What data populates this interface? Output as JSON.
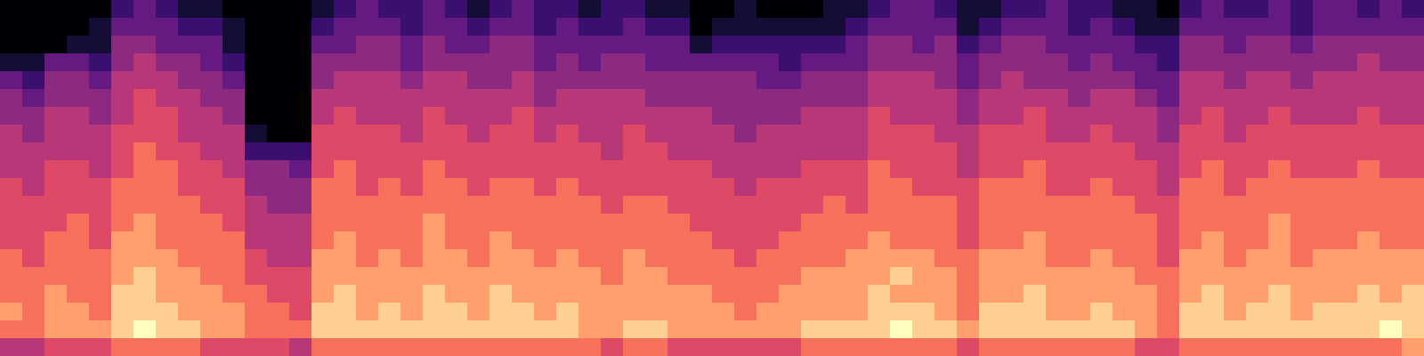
{
  "chart_data": {
    "type": "heatmap",
    "tick_labels": false,
    "color": "magma",
    "cells": [
      [
        0,
        0,
        0,
        0,
        0,
        2,
        3,
        2,
        1,
        1,
        0,
        0,
        0,
        0,
        1,
        2,
        3,
        2,
        2,
        3,
        2,
        1,
        2,
        3,
        2,
        2,
        1,
        2,
        2,
        1,
        1,
        0,
        0,
        1,
        0,
        0,
        0,
        1,
        1,
        2,
        3,
        3,
        2,
        1,
        1,
        2,
        2,
        3,
        2,
        2,
        1,
        1,
        0,
        2,
        3,
        2,
        2,
        3,
        2,
        3,
        3,
        2,
        3,
        2
      ],
      [
        0,
        0,
        0,
        0,
        1,
        3,
        3,
        3,
        2,
        2,
        1,
        0,
        0,
        0,
        2,
        3,
        3,
        3,
        2,
        3,
        3,
        2,
        3,
        3,
        2,
        3,
        2,
        2,
        3,
        2,
        2,
        0,
        1,
        1,
        1,
        1,
        1,
        1,
        2,
        3,
        3,
        3,
        3,
        1,
        2,
        3,
        3,
        3,
        2,
        3,
        2,
        1,
        1,
        3,
        3,
        3,
        3,
        3,
        2,
        3,
        3,
        3,
        3,
        3
      ],
      [
        0,
        0,
        0,
        1,
        1,
        4,
        4,
        3,
        3,
        3,
        1,
        0,
        0,
        0,
        3,
        3,
        4,
        4,
        3,
        4,
        3,
        3,
        4,
        4,
        3,
        3,
        3,
        3,
        3,
        3,
        3,
        1,
        2,
        2,
        2,
        2,
        2,
        2,
        3,
        4,
        4,
        3,
        4,
        2,
        3,
        4,
        4,
        3,
        3,
        3,
        3,
        2,
        2,
        4,
        4,
        3,
        4,
        4,
        3,
        4,
        4,
        4,
        4,
        4
      ],
      [
        1,
        1,
        3,
        3,
        2,
        4,
        5,
        4,
        4,
        3,
        2,
        0,
        0,
        0,
        4,
        4,
        4,
        4,
        3,
        4,
        4,
        4,
        4,
        4,
        3,
        4,
        3,
        4,
        4,
        3,
        3,
        3,
        3,
        3,
        3,
        2,
        3,
        3,
        3,
        4,
        4,
        4,
        4,
        3,
        4,
        4,
        4,
        4,
        3,
        4,
        3,
        3,
        2,
        4,
        4,
        4,
        4,
        4,
        4,
        4,
        4,
        5,
        4,
        4
      ],
      [
        3,
        2,
        4,
        4,
        3,
        5,
        5,
        5,
        4,
        4,
        3,
        0,
        0,
        0,
        4,
        5,
        5,
        5,
        4,
        5,
        5,
        4,
        4,
        5,
        4,
        4,
        4,
        4,
        4,
        4,
        4,
        4,
        4,
        4,
        3,
        3,
        4,
        4,
        4,
        5,
        5,
        5,
        4,
        3,
        4,
        5,
        4,
        4,
        4,
        4,
        4,
        3,
        3,
        5,
        5,
        4,
        5,
        5,
        4,
        5,
        5,
        5,
        5,
        5
      ],
      [
        4,
        3,
        4,
        4,
        4,
        5,
        6,
        5,
        5,
        4,
        4,
        0,
        0,
        0,
        5,
        5,
        5,
        5,
        5,
        5,
        5,
        5,
        5,
        5,
        4,
        5,
        5,
        5,
        5,
        4,
        4,
        4,
        4,
        4,
        4,
        4,
        4,
        4,
        4,
        5,
        5,
        5,
        5,
        4,
        5,
        5,
        5,
        5,
        4,
        5,
        5,
        4,
        3,
        5,
        5,
        5,
        5,
        5,
        5,
        5,
        5,
        5,
        5,
        5
      ],
      [
        4,
        4,
        5,
        5,
        4,
        5,
        6,
        6,
        5,
        5,
        4,
        0,
        0,
        0,
        5,
        6,
        5,
        5,
        5,
        6,
        5,
        5,
        5,
        6,
        5,
        5,
        5,
        5,
        5,
        5,
        5,
        5,
        4,
        4,
        4,
        4,
        5,
        5,
        5,
        6,
        5,
        5,
        5,
        4,
        5,
        5,
        6,
        5,
        5,
        5,
        5,
        5,
        4,
        5,
        6,
        5,
        5,
        6,
        5,
        5,
        5,
        6,
        5,
        5
      ],
      [
        5,
        4,
        5,
        5,
        5,
        6,
        6,
        6,
        5,
        5,
        5,
        1,
        0,
        0,
        6,
        6,
        6,
        6,
        5,
        6,
        6,
        5,
        6,
        6,
        5,
        6,
        5,
        5,
        6,
        5,
        5,
        5,
        5,
        4,
        5,
        5,
        5,
        5,
        5,
        6,
        6,
        6,
        5,
        5,
        6,
        6,
        6,
        5,
        5,
        6,
        5,
        5,
        4,
        6,
        6,
        5,
        6,
        6,
        6,
        6,
        6,
        6,
        6,
        6
      ],
      [
        5,
        5,
        5,
        5,
        5,
        6,
        7,
        6,
        6,
        5,
        5,
        2,
        2,
        2,
        6,
        6,
        6,
        6,
        6,
        6,
        6,
        6,
        6,
        6,
        6,
        6,
        6,
        5,
        6,
        6,
        5,
        5,
        5,
        5,
        5,
        5,
        5,
        5,
        5,
        6,
        6,
        6,
        6,
        5,
        6,
        6,
        6,
        6,
        6,
        6,
        6,
        5,
        5,
        6,
        6,
        6,
        6,
        6,
        6,
        6,
        6,
        6,
        6,
        6
      ],
      [
        5,
        5,
        6,
        6,
        5,
        6,
        7,
        7,
        6,
        6,
        5,
        4,
        4,
        3,
        6,
        7,
        6,
        6,
        6,
        7,
        6,
        6,
        6,
        6,
        6,
        6,
        6,
        6,
        6,
        6,
        6,
        6,
        5,
        5,
        5,
        5,
        6,
        6,
        6,
        7,
        6,
        6,
        6,
        5,
        6,
        6,
        7,
        6,
        6,
        6,
        6,
        6,
        5,
        6,
        7,
        6,
        6,
        7,
        6,
        6,
        6,
        7,
        6,
        6
      ],
      [
        6,
        5,
        6,
        6,
        6,
        7,
        7,
        7,
        6,
        6,
        6,
        4,
        4,
        4,
        7,
        7,
        6,
        7,
        6,
        7,
        7,
        6,
        7,
        7,
        6,
        7,
        6,
        6,
        6,
        6,
        6,
        6,
        6,
        5,
        6,
        6,
        6,
        6,
        6,
        7,
        7,
        6,
        6,
        6,
        7,
        7,
        7,
        6,
        6,
        7,
        6,
        6,
        5,
        7,
        7,
        6,
        7,
        7,
        7,
        7,
        7,
        7,
        7,
        7
      ],
      [
        6,
        6,
        6,
        6,
        6,
        7,
        7,
        7,
        7,
        6,
        6,
        5,
        4,
        4,
        7,
        7,
        7,
        7,
        7,
        7,
        7,
        7,
        7,
        7,
        7,
        7,
        7,
        6,
        7,
        7,
        6,
        6,
        6,
        6,
        6,
        6,
        6,
        7,
        6,
        7,
        7,
        7,
        7,
        6,
        7,
        7,
        7,
        7,
        7,
        7,
        7,
        6,
        6,
        7,
        7,
        7,
        7,
        7,
        7,
        7,
        7,
        7,
        7,
        7
      ],
      [
        6,
        6,
        6,
        7,
        6,
        7,
        8,
        7,
        7,
        7,
        6,
        5,
        5,
        5,
        7,
        7,
        7,
        7,
        7,
        8,
        7,
        7,
        7,
        7,
        7,
        7,
        7,
        7,
        7,
        7,
        7,
        6,
        6,
        6,
        6,
        6,
        7,
        7,
        7,
        7,
        7,
        7,
        7,
        6,
        7,
        7,
        7,
        7,
        7,
        7,
        7,
        7,
        6,
        7,
        7,
        7,
        7,
        8,
        7,
        7,
        7,
        7,
        7,
        7
      ],
      [
        6,
        6,
        7,
        7,
        6,
        8,
        8,
        7,
        7,
        7,
        7,
        5,
        5,
        5,
        7,
        8,
        7,
        7,
        7,
        8,
        7,
        7,
        8,
        7,
        7,
        7,
        7,
        7,
        7,
        7,
        7,
        7,
        6,
        6,
        6,
        7,
        7,
        7,
        7,
        8,
        7,
        7,
        7,
        6,
        7,
        7,
        8,
        7,
        7,
        7,
        7,
        7,
        6,
        7,
        8,
        7,
        7,
        8,
        7,
        7,
        7,
        8,
        7,
        7
      ],
      [
        7,
        6,
        7,
        7,
        7,
        8,
        8,
        8,
        7,
        7,
        7,
        6,
        5,
        5,
        8,
        8,
        7,
        8,
        7,
        8,
        8,
        7,
        8,
        8,
        7,
        8,
        7,
        7,
        8,
        7,
        7,
        7,
        7,
        6,
        7,
        7,
        7,
        7,
        8,
        8,
        8,
        8,
        7,
        7,
        8,
        8,
        8,
        7,
        7,
        8,
        7,
        7,
        6,
        8,
        8,
        7,
        8,
        8,
        7,
        8,
        8,
        8,
        8,
        8
      ],
      [
        7,
        7,
        7,
        7,
        7,
        8,
        9,
        8,
        8,
        7,
        7,
        6,
        6,
        6,
        8,
        8,
        8,
        8,
        8,
        8,
        8,
        8,
        8,
        8,
        8,
        8,
        8,
        7,
        8,
        8,
        7,
        7,
        7,
        7,
        7,
        7,
        8,
        8,
        8,
        8,
        9,
        8,
        8,
        7,
        8,
        8,
        8,
        8,
        8,
        8,
        8,
        7,
        7,
        8,
        8,
        8,
        8,
        8,
        8,
        8,
        8,
        8,
        8,
        8
      ],
      [
        7,
        7,
        8,
        7,
        7,
        9,
        9,
        8,
        8,
        8,
        7,
        7,
        6,
        6,
        8,
        9,
        8,
        8,
        8,
        9,
        8,
        8,
        9,
        8,
        8,
        8,
        8,
        8,
        8,
        8,
        8,
        8,
        7,
        7,
        7,
        8,
        8,
        8,
        8,
        9,
        8,
        8,
        8,
        7,
        8,
        8,
        9,
        8,
        8,
        8,
        8,
        8,
        7,
        8,
        9,
        8,
        8,
        9,
        8,
        8,
        8,
        9,
        8,
        9
      ],
      [
        8,
        7,
        8,
        8,
        7,
        9,
        9,
        9,
        8,
        8,
        8,
        7,
        7,
        6,
        9,
        9,
        8,
        9,
        8,
        9,
        9,
        8,
        9,
        9,
        8,
        9,
        8,
        8,
        8,
        8,
        8,
        8,
        8,
        7,
        8,
        8,
        8,
        8,
        8,
        9,
        9,
        9,
        8,
        7,
        9,
        9,
        9,
        8,
        8,
        9,
        8,
        8,
        7,
        9,
        9,
        8,
        9,
        9,
        8,
        9,
        9,
        9,
        9,
        9
      ],
      [
        7,
        7,
        8,
        8,
        8,
        9,
        10,
        9,
        9,
        8,
        8,
        7,
        7,
        7,
        9,
        9,
        9,
        9,
        9,
        9,
        9,
        9,
        9,
        9,
        9,
        9,
        8,
        8,
        9,
        9,
        8,
        8,
        8,
        8,
        8,
        8,
        9,
        9,
        9,
        9,
        10,
        9,
        9,
        8,
        9,
        9,
        9,
        9,
        9,
        9,
        9,
        8,
        7,
        9,
        9,
        9,
        9,
        9,
        9,
        9,
        9,
        9,
        10,
        9
      ],
      [
        5,
        5,
        6,
        6,
        6,
        7,
        7,
        7,
        7,
        6,
        6,
        6,
        6,
        5,
        7,
        7,
        7,
        7,
        7,
        7,
        7,
        7,
        7,
        7,
        7,
        7,
        7,
        6,
        7,
        7,
        6,
        6,
        6,
        6,
        6,
        6,
        7,
        7,
        7,
        7,
        7,
        7,
        7,
        6,
        7,
        7,
        7,
        7,
        7,
        7,
        7,
        6,
        6,
        7,
        7,
        7,
        7,
        7,
        7,
        7,
        7,
        7,
        7,
        8
      ]
    ]
  }
}
